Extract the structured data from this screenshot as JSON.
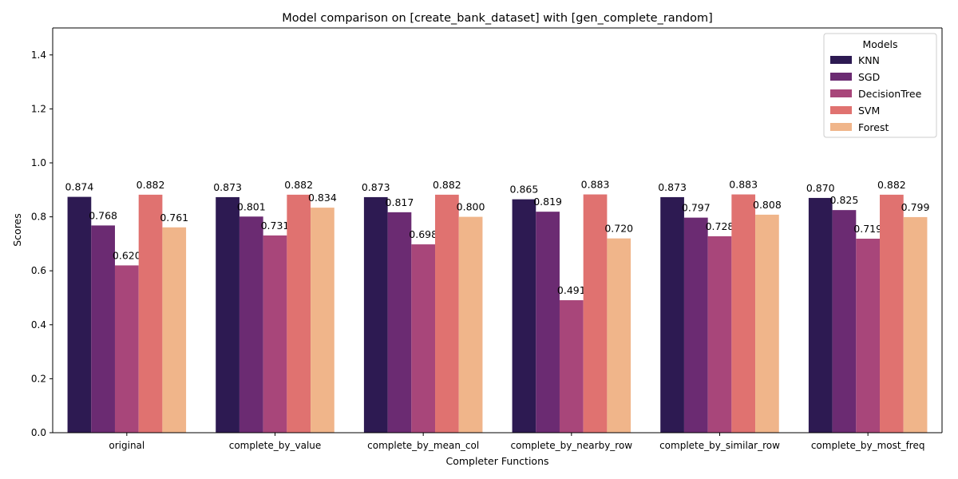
{
  "chart_data": {
    "type": "bar",
    "title": "Model comparison on [create_bank_dataset] with [gen_complete_random]",
    "xlabel": "Completer Functions",
    "ylabel": "Scores",
    "ylim": [
      0,
      1.5
    ],
    "yticks": [
      "0.0",
      "0.2",
      "0.4",
      "0.6",
      "0.8",
      "1.0",
      "1.2",
      "1.4"
    ],
    "grid": false,
    "legend": {
      "title": "Models",
      "position": "top-right"
    },
    "categories": [
      "original",
      "complete_by_value",
      "complete_by_mean_col",
      "complete_by_nearby_row",
      "complete_by_similar_row",
      "complete_by_most_freq"
    ],
    "series": [
      {
        "name": "KNN",
        "color": "#2d1a52",
        "values": [
          0.874,
          0.873,
          0.873,
          0.865,
          0.873,
          0.87
        ],
        "labels": [
          "0.874",
          "0.873",
          "0.873",
          "0.865",
          "0.873",
          "0.870"
        ]
      },
      {
        "name": "SGD",
        "color": "#6b2b72",
        "values": [
          0.768,
          0.801,
          0.817,
          0.819,
          0.797,
          0.825
        ],
        "labels": [
          "0.768",
          "0.801",
          "0.817",
          "0.819",
          "0.797",
          "0.825"
        ]
      },
      {
        "name": "DecisionTree",
        "color": "#a8467a",
        "values": [
          0.62,
          0.731,
          0.698,
          0.491,
          0.728,
          0.719
        ],
        "labels": [
          "0.620",
          "0.731",
          "0.698",
          "0.491",
          "0.728",
          "0.719"
        ]
      },
      {
        "name": "SVM",
        "color": "#e07270",
        "values": [
          0.882,
          0.882,
          0.882,
          0.883,
          0.883,
          0.882
        ],
        "labels": [
          "0.882",
          "0.882",
          "0.882",
          "0.883",
          "0.883",
          "0.882"
        ]
      },
      {
        "name": "Forest",
        "color": "#f0b58a",
        "values": [
          0.761,
          0.834,
          0.8,
          0.72,
          0.808,
          0.799
        ],
        "labels": [
          "0.761",
          "0.834",
          "0.800",
          "0.720",
          "0.808",
          "0.799"
        ]
      }
    ]
  }
}
